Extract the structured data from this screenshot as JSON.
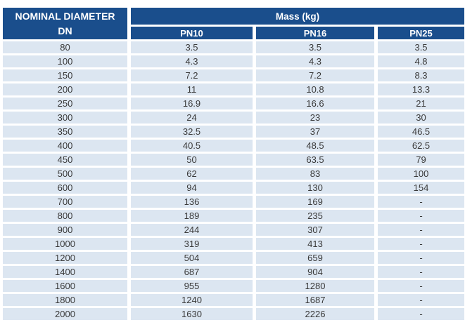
{
  "colors": {
    "header_bg": "#1a4e8c",
    "header_text": "#ffffff",
    "row_bg": "#dce6f1",
    "row_text": "#3a3a3a",
    "page_bg": "#ffffff"
  },
  "table": {
    "header": {
      "dn_title_line1": "NOMINAL DIAMETER",
      "dn_title_line2": "DN",
      "group_title": "Mass (kg)",
      "columns": [
        "PN10",
        "PN16",
        "PN25"
      ]
    },
    "rows": [
      {
        "dn": "80",
        "pn10": "3.5",
        "pn16": "3.5",
        "pn25": "3.5"
      },
      {
        "dn": "100",
        "pn10": "4.3",
        "pn16": "4.3",
        "pn25": "4.8"
      },
      {
        "dn": "150",
        "pn10": "7.2",
        "pn16": "7.2",
        "pn25": "8.3"
      },
      {
        "dn": "200",
        "pn10": "11",
        "pn16": "10.8",
        "pn25": "13.3"
      },
      {
        "dn": "250",
        "pn10": "16.9",
        "pn16": "16.6",
        "pn25": "21"
      },
      {
        "dn": "300",
        "pn10": "24",
        "pn16": "23",
        "pn25": "30"
      },
      {
        "dn": "350",
        "pn10": "32.5",
        "pn16": "37",
        "pn25": "46.5"
      },
      {
        "dn": "400",
        "pn10": "40.5",
        "pn16": "48.5",
        "pn25": "62.5"
      },
      {
        "dn": "450",
        "pn10": "50",
        "pn16": "63.5",
        "pn25": "79"
      },
      {
        "dn": "500",
        "pn10": "62",
        "pn16": "83",
        "pn25": "100"
      },
      {
        "dn": "600",
        "pn10": "94",
        "pn16": "130",
        "pn25": "154"
      },
      {
        "dn": "700",
        "pn10": "136",
        "pn16": "169",
        "pn25": "-"
      },
      {
        "dn": "800",
        "pn10": "189",
        "pn16": "235",
        "pn25": "-"
      },
      {
        "dn": "900",
        "pn10": "244",
        "pn16": "307",
        "pn25": "-"
      },
      {
        "dn": "1000",
        "pn10": "319",
        "pn16": "413",
        "pn25": "-"
      },
      {
        "dn": "1200",
        "pn10": "504",
        "pn16": "659",
        "pn25": "-"
      },
      {
        "dn": "1400",
        "pn10": "687",
        "pn16": "904",
        "pn25": "-"
      },
      {
        "dn": "1600",
        "pn10": "955",
        "pn16": "1280",
        "pn25": "-"
      },
      {
        "dn": "1800",
        "pn10": "1240",
        "pn16": "1687",
        "pn25": "-"
      },
      {
        "dn": "2000",
        "pn10": "1630",
        "pn16": "2226",
        "pn25": "-"
      }
    ]
  }
}
